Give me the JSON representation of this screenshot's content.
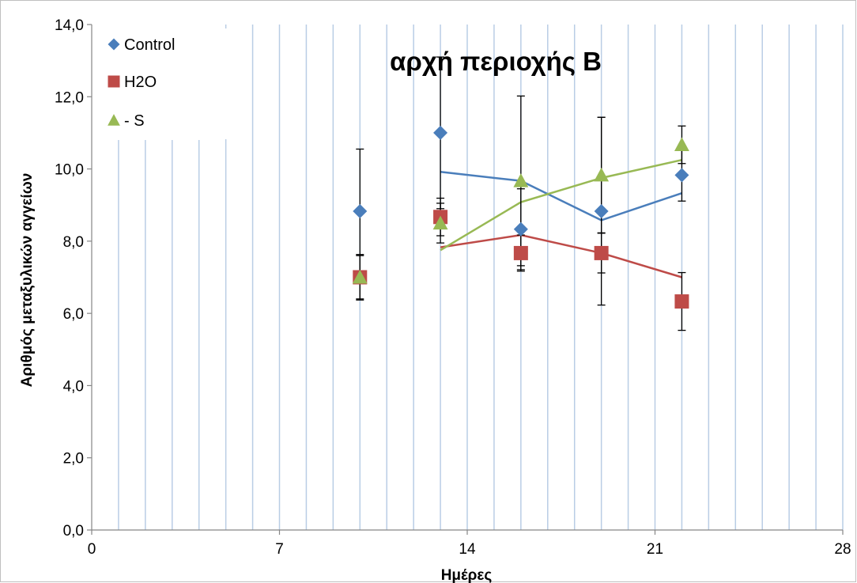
{
  "chart_data": {
    "type": "scatter",
    "title": "αρχή περιοχής Β",
    "xlabel": "Ημέρες",
    "ylabel": "Αριθμός μεταξυλικών αγγείων",
    "xlim": [
      0,
      28
    ],
    "ylim": [
      0,
      14
    ],
    "xticks": [
      0,
      7,
      14,
      21,
      28
    ],
    "xtick_labels": [
      "0",
      "7",
      "14",
      "21",
      "28"
    ],
    "yticks": [
      0,
      2,
      4,
      6,
      8,
      10,
      12,
      14
    ],
    "ytick_labels": [
      "0,0",
      "2,0",
      "4,0",
      "6,0",
      "8,0",
      "10,0",
      "12,0",
      "14,0"
    ],
    "grid": "vertical gridlines at every day",
    "legend_position": "top-left",
    "series": [
      {
        "name": "Control",
        "marker": "diamond",
        "color": "#4a7ebb",
        "x": [
          10,
          13,
          16,
          19,
          22
        ],
        "y": [
          8.83,
          11.0,
          8.33,
          8.83,
          9.83
        ],
        "error": [
          1.72,
          2.1,
          1.12,
          2.6,
          0.72
        ],
        "trend_line": {
          "x": [
            13,
            16,
            19,
            22
          ],
          "y": [
            9.92,
            9.67,
            8.58,
            9.33
          ]
        }
      },
      {
        "name": "H2O",
        "marker": "square",
        "color": "#be4b48",
        "x": [
          10,
          13,
          16,
          19,
          22
        ],
        "y": [
          7.0,
          8.67,
          7.67,
          7.67,
          6.33
        ],
        "error": [
          0.63,
          0.52,
          0.5,
          0.55,
          0.8
        ],
        "trend_line": {
          "x": [
            13,
            16,
            19,
            22
          ],
          "y": [
            7.83,
            8.17,
            7.67,
            7.0
          ]
        }
      },
      {
        "name": "- S",
        "marker": "triangle",
        "color": "#98b954",
        "x": [
          10,
          13,
          16,
          19,
          22
        ],
        "y": [
          7.0,
          8.5,
          9.67,
          9.83,
          10.67
        ],
        "error": [
          0.6,
          0.55,
          2.35,
          1.6,
          0.52
        ],
        "trend_line": {
          "x": [
            13,
            16,
            19,
            22
          ],
          "y": [
            7.75,
            9.08,
            9.75,
            10.25
          ]
        }
      }
    ]
  }
}
